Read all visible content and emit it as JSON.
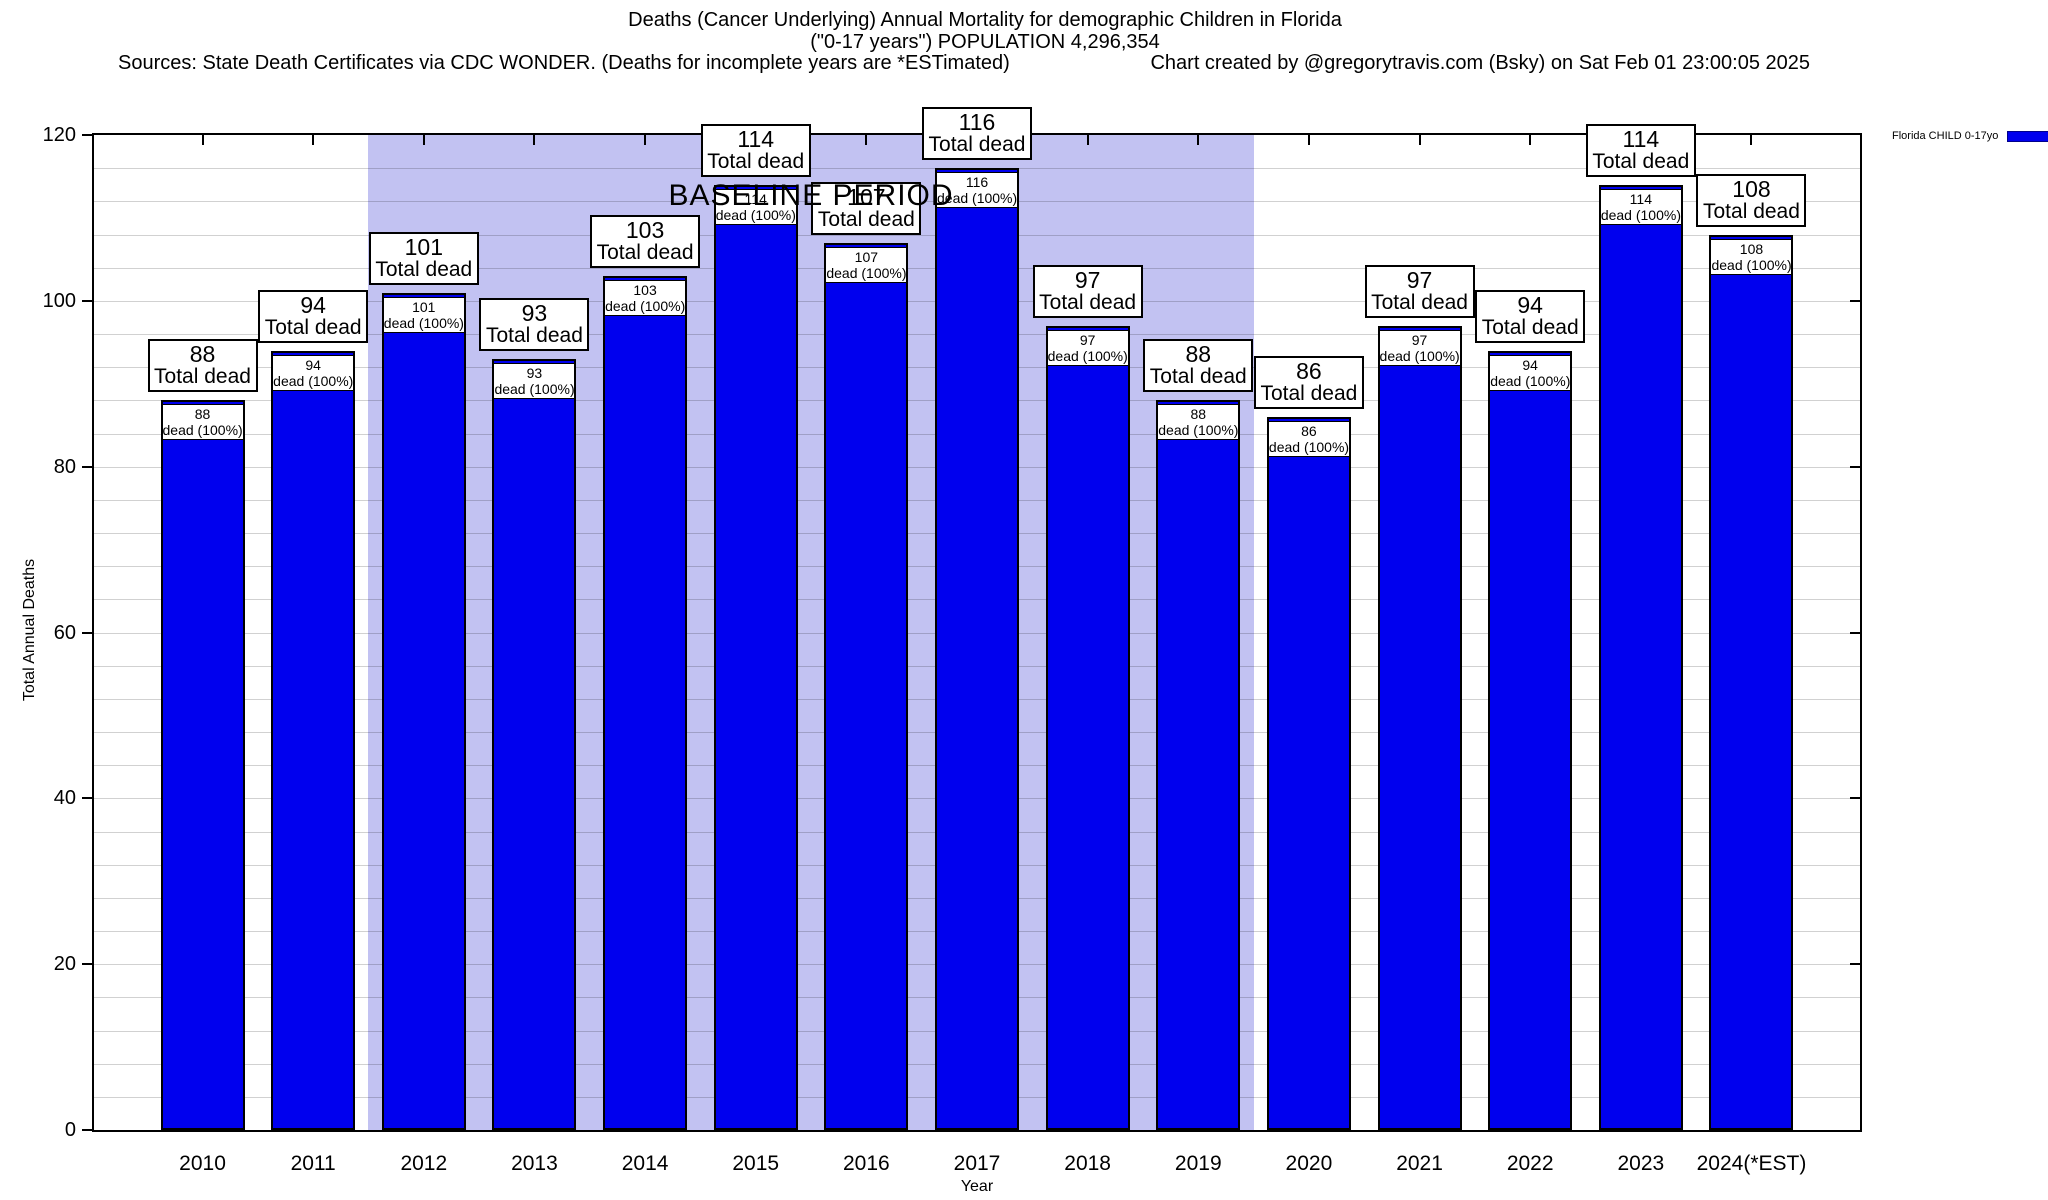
{
  "header": {
    "title_line1": "Deaths (Cancer Underlying) Annual Mortality for demographic Children in Florida",
    "title_line2": "(\"0-17 years\") POPULATION 4,296,354",
    "sources_line": "Sources: State Death Certificates via CDC WONDER. (Deaths for incomplete years are *ESTimated)",
    "credit_line": "Chart created by @gregorytravis.com (Bsky) on Sat Feb 01 23:00:05 2025"
  },
  "legend": {
    "label": "Florida CHILD 0-17yo",
    "swatch_color": "#0000ee"
  },
  "chart_data": {
    "type": "bar",
    "title": "Deaths (Cancer Underlying) Annual Mortality for demographic Children in Florida (\"0-17 years\") POPULATION 4,296,354",
    "categories": [
      "2010",
      "2011",
      "2012",
      "2013",
      "2014",
      "2015",
      "2016",
      "2017",
      "2018",
      "2019",
      "2020",
      "2021",
      "2022",
      "2023",
      "2024(*EST)"
    ],
    "series": [
      {
        "name": "Florida CHILD 0-17yo",
        "values": [
          88,
          94,
          101,
          93,
          103,
          114,
          107,
          116,
          97,
          88,
          86,
          97,
          94,
          114,
          108
        ]
      }
    ],
    "bar_labels": {
      "above_suffix": "Total dead",
      "inner_suffix": "dead (100%)"
    },
    "xlabel": "Year",
    "ylabel": "Total Annual Deaths",
    "ylim": [
      0,
      120
    ],
    "ytick_step": 20,
    "ytick_labels": [
      "0",
      "20",
      "40",
      "60",
      "80",
      "100",
      "120"
    ],
    "minor_grid_step": 4,
    "grid": true,
    "legend_position": "top-right",
    "annotations": [
      {
        "text": "BASELINE PERIOD",
        "span_start_category": "2012",
        "span_end_category": "2019"
      }
    ],
    "colors": {
      "bar": "#0000ee",
      "baseline_band": "#c2c2f2"
    }
  }
}
